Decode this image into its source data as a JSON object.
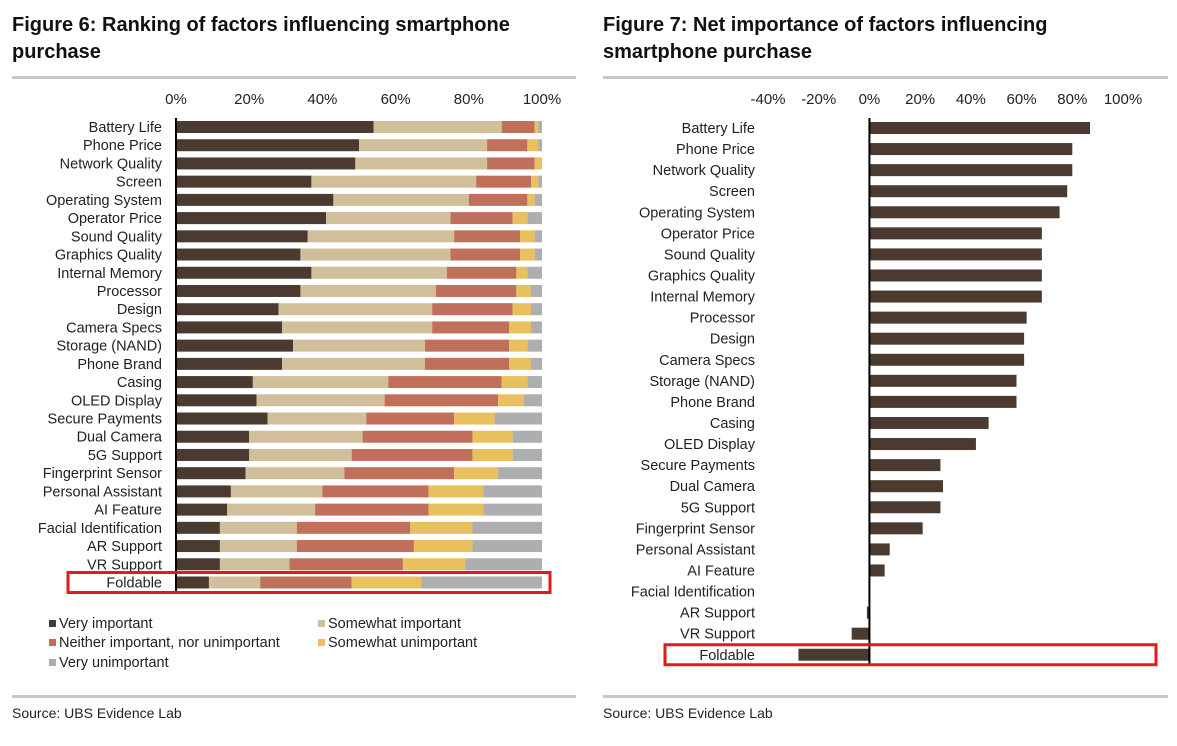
{
  "left": {
    "title_line1": "Figure 6: Ranking of factors influencing smartphone",
    "title_line2": "purchase",
    "source": "Source: UBS Evidence Lab"
  },
  "right": {
    "title_line1": "Figure 7: Net importance of factors influencing",
    "title_line2": "smartphone purchase",
    "source": "Source: UBS Evidence Lab"
  },
  "colors": {
    "very_important": "#4b3a2f",
    "somewhat_important": "#d1bf9c",
    "neither": "#c0705a",
    "somewhat_unimportant": "#e8c05e",
    "very_unimportant": "#aeaeb0",
    "net_bar": "#4b3a2f",
    "highlight": "#e01b1b"
  },
  "chart_data": [
    {
      "type": "bar",
      "orientation": "horizontal",
      "stacked": true,
      "title": "Figure 6: Ranking of factors influencing smartphone purchase",
      "xlim": [
        0,
        100
      ],
      "x_ticks": [
        "0%",
        "20%",
        "40%",
        "60%",
        "80%",
        "100%"
      ],
      "categories": [
        "Battery Life",
        "Phone Price",
        "Network Quality",
        "Screen",
        "Operating System",
        "Operator Price",
        "Sound Quality",
        "Graphics Quality",
        "Internal Memory",
        "Processor",
        "Design",
        "Camera Specs",
        "Storage (NAND)",
        "Phone Brand",
        "Casing",
        "OLED Display",
        "Secure Payments",
        "Dual Camera",
        "5G Support",
        "Fingerprint Sensor",
        "Personal Assistant",
        "AI Feature",
        "Facial Identification",
        "AR Support",
        "VR Support",
        "Foldable"
      ],
      "highlighted_category": "Foldable",
      "legend_position": "bottom",
      "series": [
        {
          "name": "Very important",
          "values": [
            54,
            50,
            49,
            37,
            43,
            41,
            36,
            34,
            37,
            34,
            28,
            29,
            32,
            29,
            21,
            22,
            25,
            20,
            20,
            19,
            15,
            14,
            12,
            12,
            12,
            9
          ]
        },
        {
          "name": "Somewhat important",
          "values": [
            35,
            35,
            36,
            45,
            37,
            34,
            40,
            41,
            37,
            37,
            42,
            41,
            36,
            39,
            37,
            35,
            27,
            31,
            28,
            27,
            25,
            24,
            21,
            21,
            19,
            14
          ]
        },
        {
          "name": "Neither important, nor unimportant",
          "values": [
            9,
            11,
            13,
            15,
            16,
            17,
            18,
            19,
            19,
            22,
            22,
            21,
            23,
            23,
            31,
            31,
            24,
            30,
            33,
            30,
            29,
            31,
            31,
            32,
            31,
            25
          ]
        },
        {
          "name": "Somewhat unimportant",
          "values": [
            1,
            3,
            2,
            2,
            2,
            4,
            4,
            4,
            3,
            4,
            5,
            6,
            5,
            6,
            7,
            7,
            11,
            11,
            11,
            12,
            15,
            15,
            17,
            16,
            17,
            19
          ]
        },
        {
          "name": "Very unimportant",
          "values": [
            1,
            1,
            0,
            1,
            2,
            4,
            2,
            2,
            4,
            3,
            3,
            3,
            4,
            3,
            4,
            5,
            13,
            8,
            8,
            12,
            16,
            16,
            19,
            19,
            21,
            33
          ]
        }
      ]
    },
    {
      "type": "bar",
      "orientation": "horizontal",
      "title": "Figure 7: Net importance of factors influencing smartphone purchase",
      "xlim": [
        -40,
        100
      ],
      "x_ticks": [
        "-40%",
        "-20%",
        "0%",
        "20%",
        "40%",
        "60%",
        "80%",
        "100%"
      ],
      "categories": [
        "Battery Life",
        "Phone Price",
        "Network Quality",
        "Screen",
        "Operating System",
        "Operator Price",
        "Sound Quality",
        "Graphics Quality",
        "Internal Memory",
        "Processor",
        "Design",
        "Camera Specs",
        "Storage (NAND)",
        "Phone Brand",
        "Casing",
        "OLED Display",
        "Secure Payments",
        "Dual Camera",
        "5G Support",
        "Fingerprint Sensor",
        "Personal Assistant",
        "AI Feature",
        "Facial Identification",
        "AR Support",
        "VR Support",
        "Foldable"
      ],
      "highlighted_category": "Foldable",
      "values": [
        87,
        80,
        80,
        78,
        75,
        68,
        68,
        68,
        68,
        62,
        61,
        61,
        58,
        58,
        47,
        42,
        28,
        29,
        28,
        21,
        8,
        6,
        0,
        -1,
        -7,
        -28
      ]
    }
  ]
}
